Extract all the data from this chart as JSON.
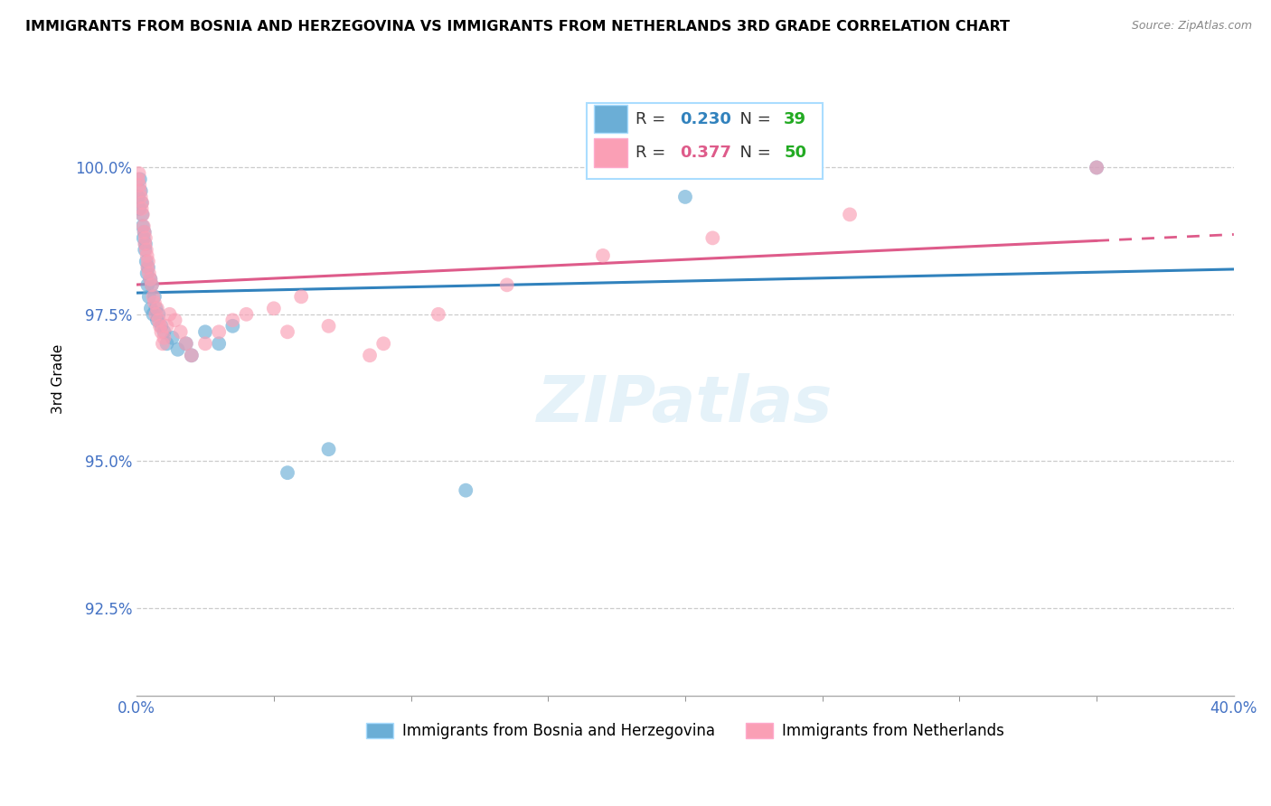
{
  "title": "IMMIGRANTS FROM BOSNIA AND HERZEGOVINA VS IMMIGRANTS FROM NETHERLANDS 3RD GRADE CORRELATION CHART",
  "source": "Source: ZipAtlas.com",
  "ylabel": "3rd Grade",
  "xlim": [
    0.0,
    40.0
  ],
  "ylim": [
    91.0,
    101.8
  ],
  "yticks": [
    92.5,
    95.0,
    97.5,
    100.0
  ],
  "xticks": [
    0.0,
    40.0
  ],
  "blue_R": 0.23,
  "blue_N": 39,
  "pink_R": 0.377,
  "pink_N": 50,
  "blue_color": "#6baed6",
  "pink_color": "#fa9fb5",
  "blue_line_color": "#3182bd",
  "pink_line_color": "#de5b8a",
  "legend1": "Immigrants from Bosnia and Herzegovina",
  "legend2": "Immigrants from Netherlands",
  "blue_x": [
    0.05,
    0.1,
    0.12,
    0.15,
    0.18,
    0.2,
    0.22,
    0.25,
    0.28,
    0.3,
    0.32,
    0.35,
    0.38,
    0.4,
    0.42,
    0.45,
    0.5,
    0.52,
    0.55,
    0.6,
    0.65,
    0.7,
    0.75,
    0.8,
    0.9,
    1.0,
    1.1,
    1.3,
    1.5,
    1.8,
    2.0,
    2.5,
    3.0,
    3.5,
    5.5,
    7.0,
    12.0,
    20.0,
    35.0
  ],
  "blue_y": [
    99.5,
    99.3,
    99.8,
    99.6,
    99.4,
    99.2,
    99.0,
    98.8,
    98.9,
    98.6,
    98.7,
    98.4,
    98.2,
    98.0,
    98.3,
    97.8,
    98.1,
    97.6,
    98.0,
    97.5,
    97.8,
    97.6,
    97.4,
    97.5,
    97.3,
    97.2,
    97.0,
    97.1,
    96.9,
    97.0,
    96.8,
    97.2,
    97.0,
    97.3,
    94.8,
    95.2,
    94.5,
    99.5,
    100.0
  ],
  "pink_x": [
    0.05,
    0.08,
    0.1,
    0.12,
    0.15,
    0.18,
    0.2,
    0.22,
    0.25,
    0.28,
    0.3,
    0.32,
    0.35,
    0.38,
    0.4,
    0.42,
    0.45,
    0.5,
    0.55,
    0.6,
    0.65,
    0.7,
    0.75,
    0.8,
    0.85,
    0.9,
    0.95,
    1.0,
    1.1,
    1.2,
    1.4,
    1.6,
    1.8,
    2.0,
    2.5,
    3.0,
    3.5,
    4.0,
    5.0,
    5.5,
    6.0,
    7.0,
    8.5,
    9.0,
    11.0,
    13.5,
    17.0,
    21.0,
    26.0,
    35.0
  ],
  "pink_y": [
    99.8,
    99.9,
    99.7,
    99.6,
    99.5,
    99.3,
    99.4,
    99.2,
    99.0,
    98.9,
    98.7,
    98.8,
    98.6,
    98.5,
    98.3,
    98.4,
    98.2,
    98.1,
    98.0,
    97.8,
    97.7,
    97.5,
    97.6,
    97.4,
    97.3,
    97.2,
    97.0,
    97.1,
    97.3,
    97.5,
    97.4,
    97.2,
    97.0,
    96.8,
    97.0,
    97.2,
    97.4,
    97.5,
    97.6,
    97.2,
    97.8,
    97.3,
    96.8,
    97.0,
    97.5,
    98.0,
    98.5,
    98.8,
    99.2,
    100.0
  ]
}
